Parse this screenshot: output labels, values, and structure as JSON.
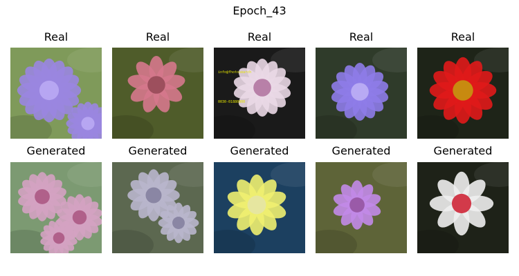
{
  "figure": {
    "title": "Epoch_43"
  },
  "rows": [
    {
      "label": "Real",
      "images": [
        {
          "icon": "purple-scabiosa-flower",
          "petal": "#9a86e0",
          "center": "#b7a6f2",
          "bg": "#7f9a5a"
        },
        {
          "icon": "pink-carnation-flower",
          "petal": "#d5788c",
          "center": "#9d4f5d",
          "bg": "#4f5c2a"
        },
        {
          "icon": "white-purple-carnation-flower",
          "petal": "#ead8e6",
          "center": "#b880a8",
          "bg": "#1a1a1a",
          "watermark": [
            "info@fhotosearch",
            "0030-01880000"
          ]
        },
        {
          "icon": "purple-scabiosa-flower",
          "petal": "#8e7ce8",
          "center": "#b8aaf4",
          "bg": "#2f3b2a"
        },
        {
          "icon": "red-dahlia-flower",
          "petal": "#e01a1a",
          "center": "#c88a10",
          "bg": "#1e2418"
        }
      ]
    },
    {
      "label": "Generated",
      "images": [
        {
          "icon": "generated-pink-flower",
          "petal": "#d4a2c2",
          "center": "#b0608a",
          "bg": "#7c9a72"
        },
        {
          "icon": "generated-gray-flower",
          "petal": "#b9b6cc",
          "center": "#8a86a4",
          "bg": "#5c6850"
        },
        {
          "icon": "generated-yellow-flower",
          "petal": "#f0f070",
          "center": "#e6e6a0",
          "bg": "#1c4060"
        },
        {
          "icon": "generated-violet-flower",
          "petal": "#c28ae8",
          "center": "#9a5aa8",
          "bg": "#5e6438"
        },
        {
          "icon": "generated-white-flower",
          "petal": "#eeeeee",
          "center": "#d23a4a",
          "bg": "#1e2218"
        }
      ]
    }
  ]
}
